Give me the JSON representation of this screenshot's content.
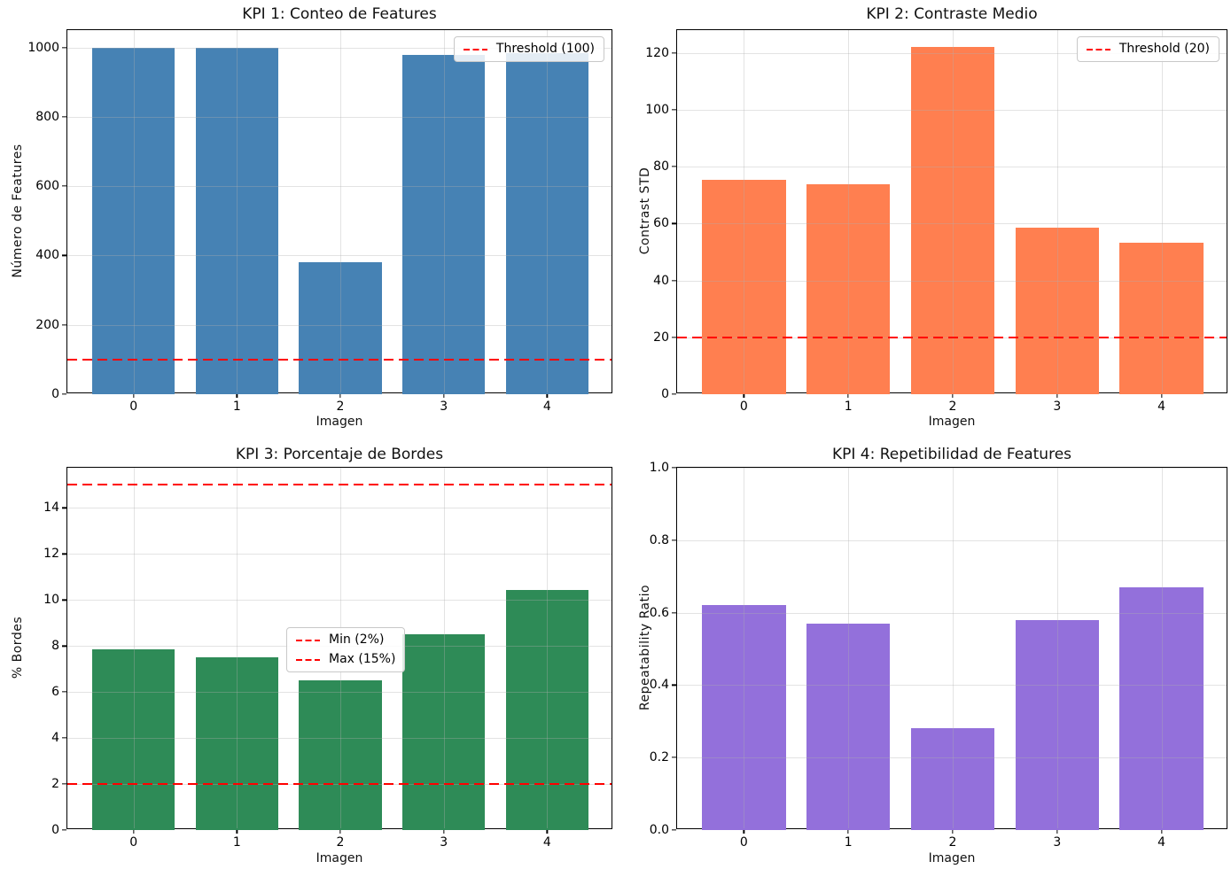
{
  "figure": {
    "background": "#ffffff",
    "grid_color": "#b0b0b0",
    "spine_color": "#000000",
    "threshold_color": "#ff0000"
  },
  "chart_data": [
    {
      "type": "bar",
      "title": "KPI 1: Conteo de Features",
      "xlabel": "Imagen",
      "ylabel": "Número de Features",
      "categories": [
        "0",
        "1",
        "2",
        "3",
        "4"
      ],
      "values": [
        1000,
        1000,
        381,
        979,
        983
      ],
      "bar_color": "#4682B4",
      "ylim": [
        0,
        1050
      ],
      "yticks": [
        0,
        200,
        400,
        600,
        800,
        1000
      ],
      "ytick_labels": [
        "0",
        "200",
        "400",
        "600",
        "800",
        "1000"
      ],
      "grid": true,
      "thresholds": [
        {
          "value": 100,
          "label": "Threshold (100)"
        }
      ],
      "legend": {
        "position": "top-right",
        "entries": [
          "Threshold (100)"
        ]
      }
    },
    {
      "type": "bar",
      "title": "KPI 2: Contraste Medio",
      "xlabel": "Imagen",
      "ylabel": "Contrast STD",
      "categories": [
        "0",
        "1",
        "2",
        "3",
        "4"
      ],
      "values": [
        75.4,
        73.8,
        122.2,
        58.4,
        53.1
      ],
      "bar_color": "#FF7F50",
      "ylim": [
        0,
        128
      ],
      "yticks": [
        0,
        20,
        40,
        60,
        80,
        100,
        120
      ],
      "ytick_labels": [
        "0",
        "20",
        "40",
        "60",
        "80",
        "100",
        "120"
      ],
      "grid": true,
      "thresholds": [
        {
          "value": 20,
          "label": "Threshold (20)"
        }
      ],
      "legend": {
        "position": "top-right",
        "entries": [
          "Threshold (20)"
        ]
      }
    },
    {
      "type": "bar",
      "title": "KPI 3: Porcentaje de Bordes",
      "xlabel": "Imagen",
      "ylabel": "% Bordes",
      "categories": [
        "0",
        "1",
        "2",
        "3",
        "4"
      ],
      "values": [
        7.85,
        7.52,
        6.52,
        8.51,
        10.44
      ],
      "bar_color": "#2E8B57",
      "ylim": [
        0,
        15.75
      ],
      "yticks": [
        0,
        2,
        4,
        6,
        8,
        10,
        12,
        14
      ],
      "ytick_labels": [
        "0",
        "2",
        "4",
        "6",
        "8",
        "10",
        "12",
        "14"
      ],
      "grid": true,
      "thresholds": [
        {
          "value": 2,
          "label": "Min (2%)"
        },
        {
          "value": 15,
          "label": "Max (15%)"
        }
      ],
      "legend": {
        "position": "center",
        "entries": [
          "Min (2%)",
          "Max (15%)"
        ]
      }
    },
    {
      "type": "bar",
      "title": "KPI 4: Repetibilidad de Features",
      "xlabel": "Imagen",
      "ylabel": "Repeatability Ratio",
      "categories": [
        "0",
        "1",
        "2",
        "3",
        "4"
      ],
      "values": [
        0.62,
        0.57,
        0.28,
        0.58,
        0.67
      ],
      "bar_color": "#9370DB",
      "ylim": [
        0,
        1.0
      ],
      "yticks": [
        0,
        0.2,
        0.4,
        0.6,
        0.8,
        1.0
      ],
      "ytick_labels": [
        "0.0",
        "0.2",
        "0.4",
        "0.6",
        "0.8",
        "1.0"
      ],
      "grid": true,
      "thresholds": [],
      "legend": null
    }
  ]
}
